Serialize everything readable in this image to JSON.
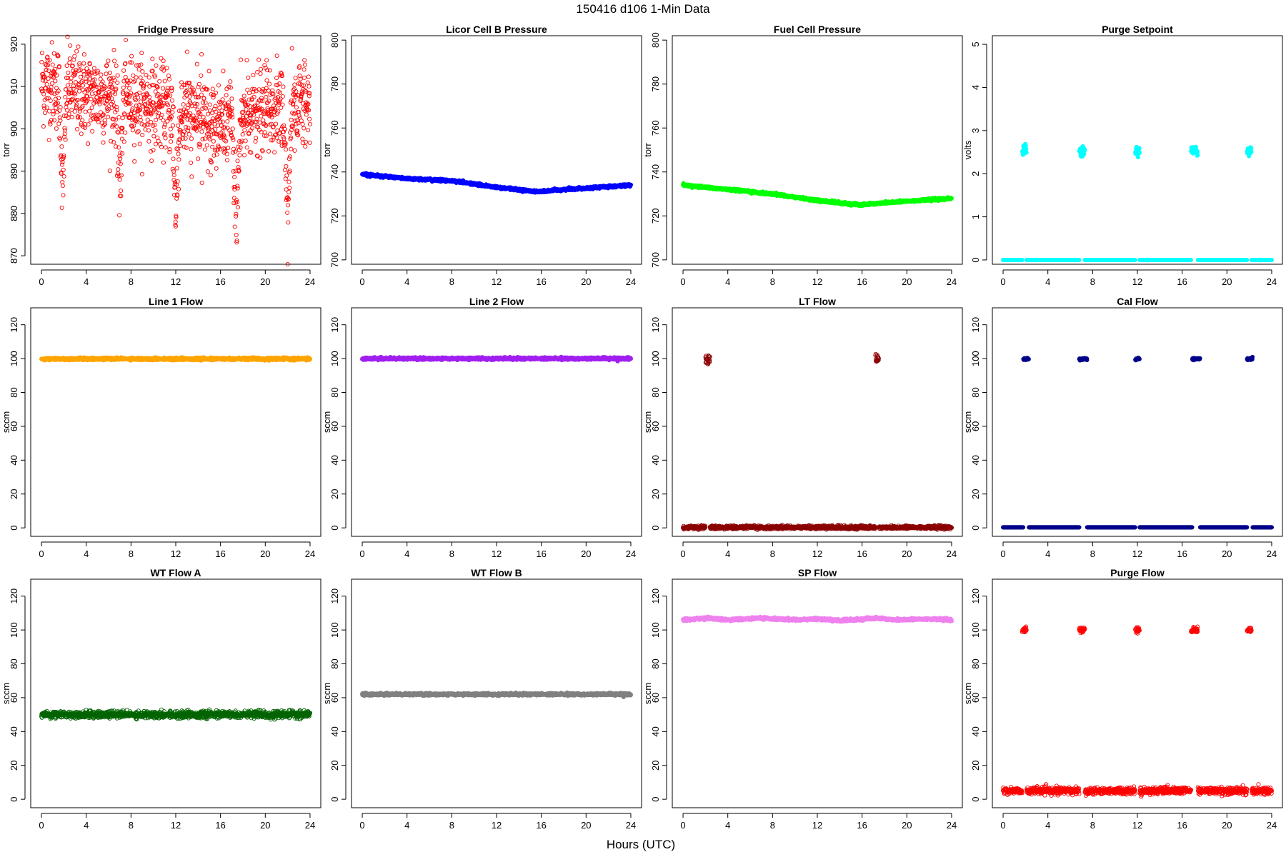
{
  "figure": {
    "title": "150416   d106   1-Min Data",
    "xlabel": "Hours (UTC)"
  },
  "chart_data": [
    {
      "type": "scatter",
      "title": "Fridge Pressure",
      "ylabel": "torr",
      "color": "#ff0000",
      "marker": "open-circle",
      "xlim": [
        0,
        24
      ],
      "ylim": [
        868,
        922
      ],
      "x_ticks": [
        0,
        4,
        8,
        12,
        16,
        20,
        24
      ],
      "y_ticks": [
        870,
        880,
        890,
        900,
        910,
        920
      ],
      "pattern": "noisy",
      "baseline": [
        [
          0,
          911
        ],
        [
          4,
          908
        ],
        [
          8,
          907
        ],
        [
          12,
          904
        ],
        [
          16,
          901
        ],
        [
          20,
          904
        ],
        [
          24,
          906
        ]
      ],
      "noise": 5,
      "dips": [
        [
          1.9,
          880
        ],
        [
          7.0,
          879
        ],
        [
          12.0,
          875
        ],
        [
          17.4,
          869
        ],
        [
          22.0,
          873
        ]
      ]
    },
    {
      "type": "scatter",
      "title": "Licor Cell B Pressure",
      "ylabel": "torr",
      "color": "#0000ff",
      "marker": "filled",
      "xlim": [
        0,
        24
      ],
      "ylim": [
        698,
        802
      ],
      "x_ticks": [
        0,
        4,
        8,
        12,
        16,
        20,
        24
      ],
      "y_ticks": [
        700,
        720,
        740,
        760,
        780,
        800
      ],
      "pattern": "line",
      "baseline": [
        [
          0,
          739
        ],
        [
          4,
          737
        ],
        [
          8,
          736
        ],
        [
          12,
          733
        ],
        [
          15.8,
          731
        ],
        [
          18,
          732
        ],
        [
          24,
          734
        ]
      ]
    },
    {
      "type": "scatter",
      "title": "Fuel Cell Pressure",
      "ylabel": "torr",
      "color": "#00ff00",
      "marker": "filled",
      "xlim": [
        0,
        24
      ],
      "ylim": [
        698,
        802
      ],
      "x_ticks": [
        0,
        4,
        8,
        12,
        16,
        20,
        24
      ],
      "y_ticks": [
        700,
        720,
        740,
        760,
        780,
        800
      ],
      "pattern": "line",
      "baseline": [
        [
          0,
          734
        ],
        [
          4,
          732
        ],
        [
          8,
          730
        ],
        [
          12,
          727
        ],
        [
          15.8,
          725
        ],
        [
          18,
          726
        ],
        [
          24,
          728
        ]
      ]
    },
    {
      "type": "scatter",
      "title": "Purge Setpoint",
      "ylabel": "volts",
      "color": "#00ffff",
      "marker": "filled",
      "xlim": [
        0,
        24
      ],
      "ylim": [
        -0.1,
        5.2
      ],
      "x_ticks": [
        0,
        4,
        8,
        12,
        16,
        20,
        24
      ],
      "y_ticks": [
        0,
        1,
        2,
        3,
        4,
        5
      ],
      "pattern": "events",
      "base": 0.0,
      "event_value": 2.53,
      "event_spread": 0.06,
      "events": [
        [
          1.7,
          2.1
        ],
        [
          6.8,
          7.3
        ],
        [
          11.8,
          12.2
        ],
        [
          16.8,
          17.4
        ],
        [
          21.8,
          22.2
        ]
      ]
    },
    {
      "type": "scatter",
      "title": "Line 1 Flow",
      "ylabel": "sccm",
      "color": "#ffa500",
      "marker": "filled",
      "xlim": [
        0,
        24
      ],
      "ylim": [
        -5,
        130
      ],
      "x_ticks": [
        0,
        4,
        8,
        12,
        16,
        20,
        24
      ],
      "y_ticks": [
        0,
        20,
        40,
        60,
        80,
        100,
        120
      ],
      "pattern": "line",
      "baseline": [
        [
          0,
          99.8
        ],
        [
          24,
          99.8
        ]
      ]
    },
    {
      "type": "scatter",
      "title": "Line 2 Flow",
      "ylabel": "sccm",
      "color": "#a020f0",
      "marker": "filled",
      "xlim": [
        0,
        24
      ],
      "ylim": [
        -5,
        130
      ],
      "x_ticks": [
        0,
        4,
        8,
        12,
        16,
        20,
        24
      ],
      "y_ticks": [
        0,
        20,
        40,
        60,
        80,
        100,
        120
      ],
      "pattern": "line",
      "baseline": [
        [
          0,
          100
        ],
        [
          24,
          100
        ]
      ]
    },
    {
      "type": "scatter",
      "title": "LT Flow",
      "ylabel": "sccm",
      "color": "#8b0000",
      "marker": "open-circle",
      "xlim": [
        0,
        24
      ],
      "ylim": [
        -5,
        130
      ],
      "x_ticks": [
        0,
        4,
        8,
        12,
        16,
        20,
        24
      ],
      "y_ticks": [
        0,
        20,
        40,
        60,
        80,
        100,
        120
      ],
      "pattern": "events",
      "base": 0.3,
      "base_noise": 1.2,
      "event_value": 99.5,
      "event_spread": 1.5,
      "events": [
        [
          2.0,
          2.4
        ],
        [
          17.2,
          17.5
        ]
      ]
    },
    {
      "type": "scatter",
      "title": "Cal Flow",
      "ylabel": "sccm",
      "color": "#00008b",
      "marker": "filled",
      "xlim": [
        0,
        24
      ],
      "ylim": [
        -5,
        130
      ],
      "x_ticks": [
        0,
        4,
        8,
        12,
        16,
        20,
        24
      ],
      "y_ticks": [
        0,
        20,
        40,
        60,
        80,
        100,
        120
      ],
      "pattern": "events",
      "base": 0.3,
      "event_value": 99.8,
      "event_spread": 0.3,
      "events": [
        [
          1.8,
          2.3
        ],
        [
          6.8,
          7.5
        ],
        [
          11.8,
          12.2
        ],
        [
          16.9,
          17.6
        ],
        [
          21.8,
          22.3
        ]
      ]
    },
    {
      "type": "scatter",
      "title": "WT Flow A",
      "ylabel": "sccm",
      "color": "#006400",
      "marker": "open-circle",
      "xlim": [
        0,
        24
      ],
      "ylim": [
        -5,
        130
      ],
      "x_ticks": [
        0,
        4,
        8,
        12,
        16,
        20,
        24
      ],
      "y_ticks": [
        0,
        20,
        40,
        60,
        80,
        100,
        120
      ],
      "pattern": "noisy",
      "baseline": [
        [
          0,
          50
        ],
        [
          24,
          50
        ]
      ],
      "noise": 1.0
    },
    {
      "type": "scatter",
      "title": "WT Flow B",
      "ylabel": "sccm",
      "color": "#808080",
      "marker": "filled",
      "xlim": [
        0,
        24
      ],
      "ylim": [
        -5,
        130
      ],
      "x_ticks": [
        0,
        4,
        8,
        12,
        16,
        20,
        24
      ],
      "y_ticks": [
        0,
        20,
        40,
        60,
        80,
        100,
        120
      ],
      "pattern": "line",
      "baseline": [
        [
          0,
          62
        ],
        [
          24,
          62
        ]
      ]
    },
    {
      "type": "scatter",
      "title": "SP Flow",
      "ylabel": "sccm",
      "color": "#ee82ee",
      "marker": "filled",
      "xlim": [
        0,
        24
      ],
      "ylim": [
        -5,
        130
      ],
      "x_ticks": [
        0,
        4,
        8,
        12,
        16,
        20,
        24
      ],
      "y_ticks": [
        0,
        20,
        40,
        60,
        80,
        100,
        120
      ],
      "pattern": "line",
      "baseline": [
        [
          0,
          106
        ],
        [
          2.2,
          107
        ],
        [
          4,
          106
        ],
        [
          7.2,
          107
        ],
        [
          10,
          106
        ],
        [
          12.2,
          106.5
        ],
        [
          14,
          105.5
        ],
        [
          17.3,
          107
        ],
        [
          19,
          106
        ],
        [
          22,
          106.5
        ],
        [
          24,
          106
        ]
      ]
    },
    {
      "type": "scatter",
      "title": "Purge Flow",
      "ylabel": "sccm",
      "color": "#ff0000",
      "marker": "open-circle",
      "xlim": [
        0,
        24
      ],
      "ylim": [
        -5,
        130
      ],
      "x_ticks": [
        0,
        4,
        8,
        12,
        16,
        20,
        24
      ],
      "y_ticks": [
        0,
        20,
        40,
        60,
        80,
        100,
        120
      ],
      "pattern": "events",
      "base": 5.0,
      "base_noise": 2.5,
      "event_value": 100,
      "event_spread": 0.8,
      "events": [
        [
          1.7,
          2.1
        ],
        [
          6.8,
          7.3
        ],
        [
          11.8,
          12.2
        ],
        [
          16.8,
          17.4
        ],
        [
          21.8,
          22.2
        ]
      ]
    }
  ]
}
